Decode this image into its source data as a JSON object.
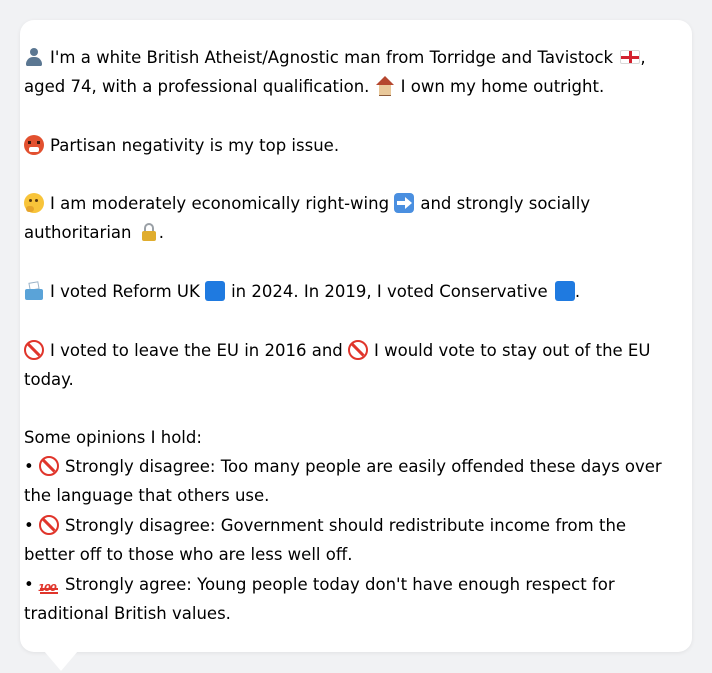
{
  "profile": {
    "intro_line1": "I'm a white British Atheist/Agnostic man from Torridge and Tavistock",
    "intro_line1_end": ",",
    "intro_line2": "aged 74, with a professional qualification.",
    "intro_line2_end": "I own my home outright.",
    "top_issue": "Partisan negativity is my top issue.",
    "economics_line1": "I am moderately economically right-wing",
    "economics_line1_end": "and strongly socially",
    "economics_line2": "authoritarian",
    "economics_line2_end": ".",
    "vote_part1": "I voted Reform UK",
    "vote_part2": "in 2024. In 2019, I voted Conservative",
    "vote_part3": ".",
    "eu_line1_part1": "I voted to leave the EU in 2016 and",
    "eu_line1_part2": "I would vote to stay out of the EU",
    "eu_line2": "today.",
    "opinions_heading": "Some opinions I hold:",
    "bullet": "•",
    "opinions": [
      {
        "line1": "Strongly disagree: Too many people are easily offended these days over",
        "line2": "the language that others use."
      },
      {
        "line1": "Strongly disagree: Government should redistribute income from the",
        "line2": "better off to those who are less well off."
      },
      {
        "line1": "Strongly agree: Young people today don't have enough respect for",
        "line2": "traditional British values."
      }
    ]
  },
  "icons": [
    "person-icon",
    "england-flag-icon",
    "house-icon",
    "angry-face-icon",
    "thinking-face-icon",
    "right-arrow-icon",
    "lock-icon",
    "ballot-box-icon",
    "blue-square-icon",
    "prohibited-icon",
    "hundred-icon"
  ],
  "colors": {
    "background": "#f1f2f4",
    "card": "#ffffff",
    "text": "#1f2328"
  }
}
